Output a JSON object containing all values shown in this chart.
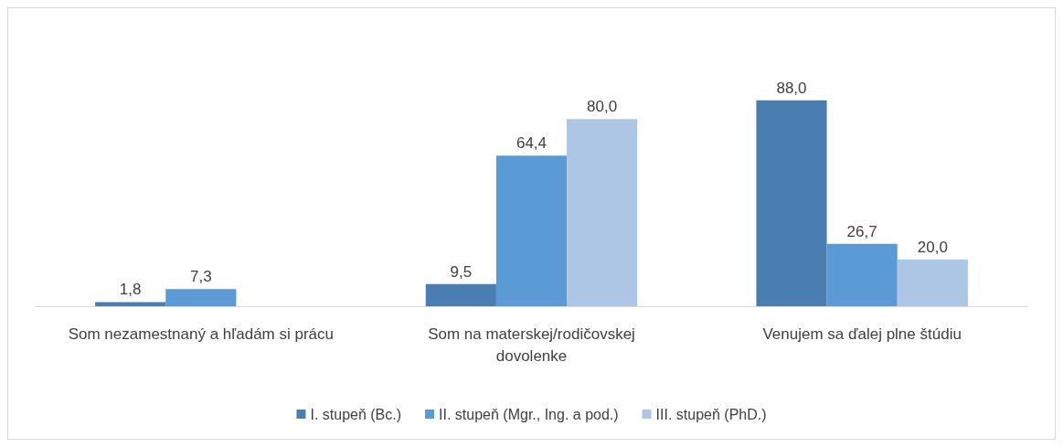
{
  "chart_data": {
    "type": "bar",
    "categories": [
      "Som nezamestnaný a hľadám si prácu",
      "Som na materskej/rodičovskej\ndovolenke",
      "Venujem sa ďalej plne štúdiu"
    ],
    "series": [
      {
        "name": "I. stupeň (Bc.)",
        "color": "#4a7eb0",
        "values": [
          1.8,
          9.5,
          88.0
        ],
        "value_labels": [
          "1,8",
          "9,5",
          "88,0"
        ]
      },
      {
        "name": "II. stupeň (Mgr., Ing. a pod.)",
        "color": "#5b9bd5",
        "values": [
          7.3,
          64.4,
          26.7
        ],
        "value_labels": [
          "7,3",
          "64,4",
          "26,7"
        ]
      },
      {
        "name": "III. stupeň (PhD.)",
        "color": "#adc6e5",
        "values": [
          null,
          80.0,
          20.0
        ],
        "value_labels": [
          null,
          "80,0",
          "20,0"
        ]
      }
    ],
    "legend": "bottom"
  }
}
